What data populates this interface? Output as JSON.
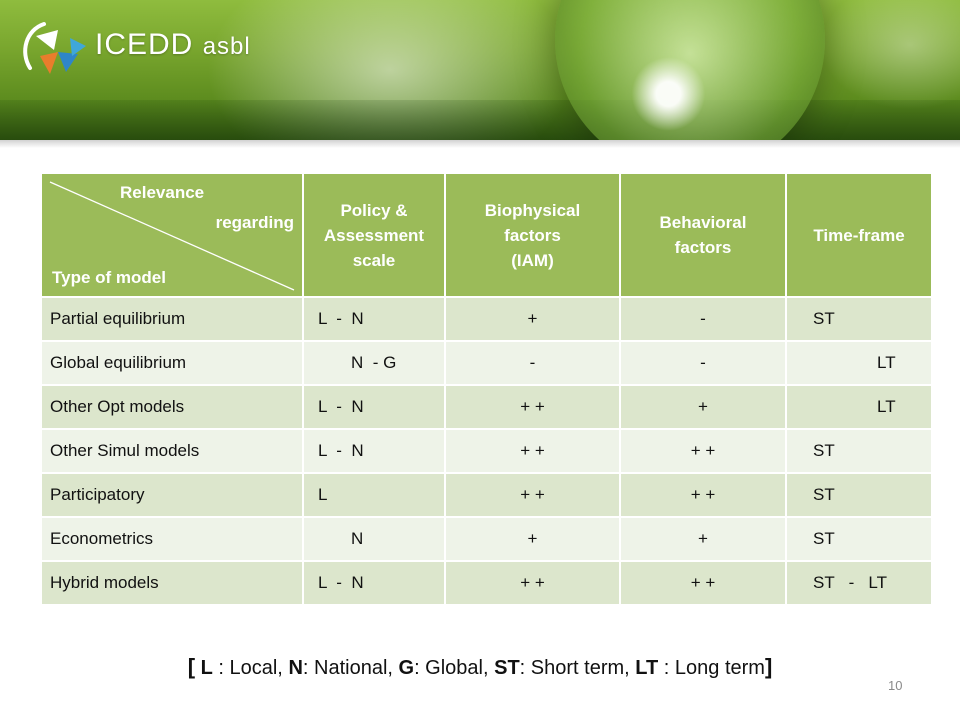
{
  "brand": {
    "name": "ICEDD",
    "suffix": "asbl"
  },
  "table": {
    "corner": {
      "relevance": "Relevance",
      "regarding": "regarding",
      "type": "Type of model"
    },
    "headers": {
      "scale": [
        "Policy &",
        "Assessment",
        "scale"
      ],
      "bio": [
        "Biophysical",
        "factors",
        "(IAM)"
      ],
      "beh": [
        "Behavioral",
        "factors"
      ],
      "tf": "Time-frame"
    },
    "rows": [
      {
        "type": "Partial equilibrium",
        "scale": "L  -  N",
        "bio": "+",
        "beh": "-",
        "tf": "ST"
      },
      {
        "type": "Global equilibrium",
        "scale": "       N  - G",
        "bio": "-",
        "beh": "-",
        "tf": "LT"
      },
      {
        "type": "Other Opt models",
        "scale": "L  -  N",
        "bio": "+ +",
        "beh": "+",
        "tf": "LT"
      },
      {
        "type": "Other Simul models",
        "scale": "L  -  N",
        "bio": "+ +",
        "beh": "+ +",
        "tf": "ST"
      },
      {
        "type": "Participatory",
        "scale": "L",
        "bio": "+ +",
        "beh": "+ +",
        "tf": "ST"
      },
      {
        "type": "Econometrics",
        "scale": "       N",
        "bio": "+",
        "beh": "+",
        "tf": "ST"
      },
      {
        "type": "Hybrid models",
        "scale": "L  -  N",
        "bio": "+ +",
        "beh": "+ +",
        "tf": "ST   -   LT"
      }
    ]
  },
  "legend": {
    "open": "[",
    "l_key": "L",
    "l_desc": " : Local, ",
    "n_key": "N",
    "n_desc": ": National, ",
    "g_key": "G",
    "g_desc": ": Global, ",
    "st_key": "ST",
    "st_desc": ": Short term, ",
    "lt_key": "LT",
    "lt_desc": " : Long term",
    "close": "]"
  },
  "page_number": "10",
  "colors": {
    "header_green": "#9bbb59",
    "row_dark": "#dce6cc",
    "row_light": "#eef3e8"
  }
}
